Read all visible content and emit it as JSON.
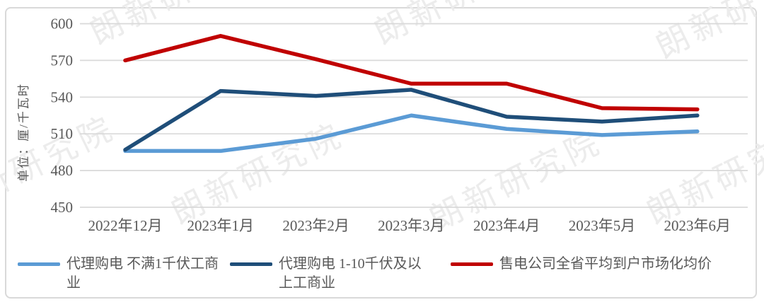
{
  "watermark": {
    "text": "朗新研究院",
    "color": "#ececec"
  },
  "colors": {
    "grid": "#d9d9d9",
    "axis_text": "#595959",
    "card_border": "#d9d9d9"
  },
  "chart_data": {
    "type": "line",
    "title": "",
    "ylabel": "单位：厘/千瓦时",
    "xlabel": "",
    "ylim": [
      450,
      600
    ],
    "y_ticks": [
      600,
      570,
      540,
      510,
      480,
      450
    ],
    "grid": true,
    "legend_position": "bottom",
    "categories": [
      "2022年12月",
      "2023年1月",
      "2023年2月",
      "2023年3月",
      "2023年4月",
      "2023年5月",
      "2023年6月"
    ],
    "series": [
      {
        "name": "代理购电 不满1千伏工商业",
        "color": "#5b9bd5",
        "values": [
          496,
          496,
          506,
          525,
          514,
          509,
          512
        ]
      },
      {
        "name": "代理购电 1-10千伏及以上工商业",
        "color": "#1f4e79",
        "values": [
          497,
          545,
          541,
          546,
          524,
          520,
          525
        ]
      },
      {
        "name": "售电公司全省平均到户市场化均价",
        "color": "#c00000",
        "values": [
          570,
          590,
          571,
          551,
          551,
          531,
          530
        ]
      }
    ]
  }
}
